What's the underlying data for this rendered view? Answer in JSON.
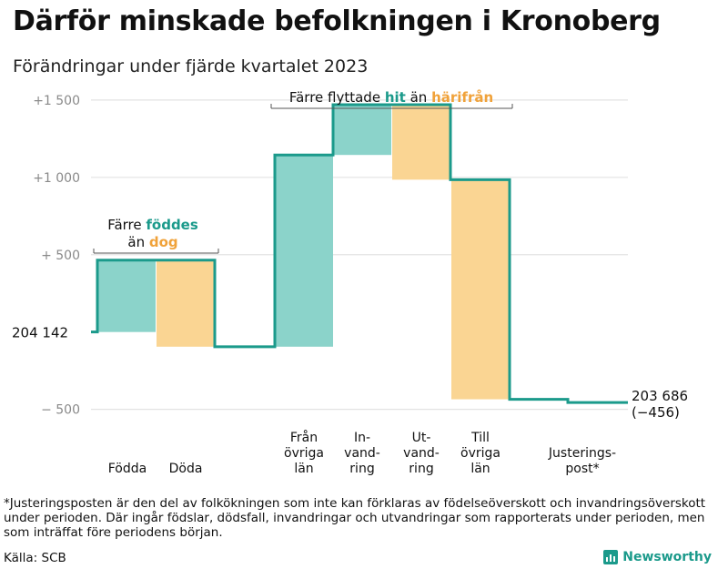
{
  "title": "Därför minskade befolkningen i Kronoberg",
  "subtitle": "Förändringar under fjärde kvartalet 2023",
  "footnote": "*Justeringsposten är den del av folkökningen som inte kan förklaras av födelseöverskott och invandringsöverskott under perioden. Där ingår födslar, dödsfall, invandringar och utvandringar som rapporterats under perioden, men som inträffat före periodens början.",
  "source": "Källa: SCB",
  "brand": "Newsworthy",
  "colors": {
    "teal": "#1b9a8b",
    "teal_fill": "#8bd3ca",
    "orange": "#f0a23a",
    "orange_fill": "#fad593",
    "grid": "#e3e3e3",
    "axis_text": "#8a8a8a"
  },
  "chart_data": {
    "type": "waterfall",
    "start_value": 204142,
    "start_label": "204  142",
    "end_value": 203686,
    "end_label": "203 686",
    "end_change_label": "(−456)",
    "ylim": [
      -620,
      1570
    ],
    "yticks": [
      {
        "value": 1500,
        "label": "+1  500"
      },
      {
        "value": 1000,
        "label": "+1  000"
      },
      {
        "value": 500,
        "label": "+  500"
      },
      {
        "value": -500,
        "label": "−  500"
      }
    ],
    "steps": [
      {
        "name": "Födda",
        "label_lines": [
          "Födda"
        ],
        "delta": 465,
        "kind": "in"
      },
      {
        "name": "Döda",
        "label_lines": [
          "Döda"
        ],
        "delta": -560,
        "kind": "out"
      },
      {
        "name": "Från övriga län",
        "label_lines": [
          "Från",
          "övriga",
          "län"
        ],
        "delta": 1240,
        "kind": "in"
      },
      {
        "name": "Invandring",
        "label_lines": [
          "In-",
          "vand-",
          "ring"
        ],
        "delta": 325,
        "kind": "in"
      },
      {
        "name": "Utvandring",
        "label_lines": [
          "Ut-",
          "vand-",
          "ring"
        ],
        "delta": -485,
        "kind": "out"
      },
      {
        "name": "Till övriga län",
        "label_lines": [
          "Till",
          "övriga",
          "län"
        ],
        "delta": -1420,
        "kind": "out"
      },
      {
        "name": "Justeringspost*",
        "label_lines": [
          "Justerings-",
          "post*"
        ],
        "delta": -21,
        "kind": "adjust"
      }
    ],
    "annotations": {
      "births": {
        "line1": "Färre",
        "word1": "föddes",
        "line2": "än",
        "word2": "dog"
      },
      "migration": {
        "prefix": "Färre flyttade",
        "word1": "hit",
        "middle": "än",
        "word2": "härifrån"
      }
    }
  }
}
